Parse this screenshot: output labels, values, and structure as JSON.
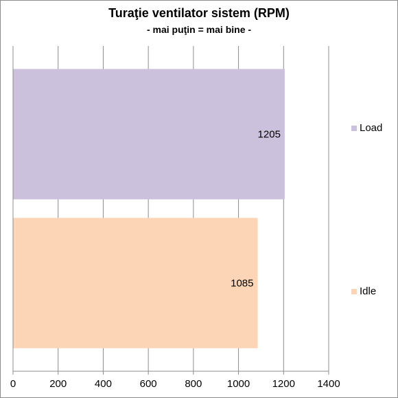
{
  "chart_data": {
    "type": "bar",
    "orientation": "horizontal",
    "title": "Turaţie ventilator sistem (RPM)",
    "subtitle": "- mai puţin = mai bine -",
    "series": [
      {
        "name": "Load",
        "value": 1205,
        "color": "#ccc1dd"
      },
      {
        "name": "Idle",
        "value": 1085,
        "color": "#fbd5b5"
      }
    ],
    "xlim": [
      0,
      1400
    ],
    "xticks": [
      "0",
      "200",
      "400",
      "600",
      "800",
      "1000",
      "1200",
      "1400"
    ],
    "grid": true,
    "legend_position": "right"
  }
}
